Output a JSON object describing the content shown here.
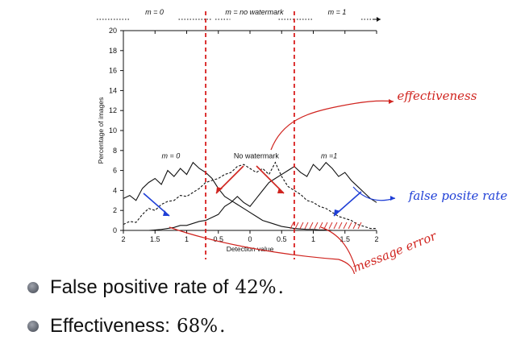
{
  "slide": {
    "bullets": [
      {
        "text": "False positive rate of",
        "value": "42%",
        "trail": "."
      },
      {
        "text": "Effectiveness:",
        "value": "68%",
        "trail": "."
      }
    ]
  },
  "annotations": {
    "effectiveness": "effectiveness",
    "false_positive_rate": "false posite rate",
    "message_error": "message error"
  },
  "colors": {
    "red_dashed": "#d81e1e",
    "red_ink": "#d0241f",
    "blue_ink": "#1f3fd6",
    "series": "#111111"
  },
  "chart_data": {
    "type": "line",
    "ylabel": "Percentage of images",
    "xlabel": "Detection value",
    "x_tick_labels": [
      "2",
      "1.5",
      "1",
      "0.5",
      "0",
      "0.5",
      "1",
      "1.5",
      "2"
    ],
    "y_ticks": [
      0,
      2,
      4,
      6,
      8,
      10,
      12,
      14,
      16,
      18,
      20
    ],
    "ylim": [
      0,
      20
    ],
    "xlim": [
      -2,
      2
    ],
    "thresholds": [
      -0.7,
      0.7
    ],
    "top_axis_labels": [
      "m_n = 0",
      "m_n = no watermark",
      "m_n = 1"
    ],
    "series_labels": [
      {
        "text": "m = 0",
        "x": -1.25,
        "y": 7.2
      },
      {
        "text": "No watermark",
        "x": 0.1,
        "y": 7.2
      },
      {
        "text": "m =1",
        "x": 1.25,
        "y": 7.2
      }
    ],
    "series": [
      {
        "name": "m = 0",
        "style": "solid",
        "x": [
          -2,
          -1.9,
          -1.8,
          -1.7,
          -1.6,
          -1.5,
          -1.4,
          -1.3,
          -1.2,
          -1.1,
          -1.0,
          -0.9,
          -0.8,
          -0.7,
          -0.6,
          -0.5,
          -0.4,
          -0.3,
          -0.2,
          -0.1,
          0,
          0.1,
          0.2,
          0.3,
          0.4,
          0.5,
          0.6,
          0.7,
          0.8,
          0.9,
          1.0,
          1.1,
          1.2,
          1.3,
          1.4,
          1.5,
          1.6,
          1.7,
          1.8,
          1.9,
          2.0
        ],
        "y": [
          3.2,
          3.5,
          3.0,
          4.2,
          4.8,
          5.2,
          4.6,
          6.0,
          5.4,
          6.2,
          5.6,
          6.8,
          6.2,
          5.8,
          5.2,
          4.2,
          3.4,
          3.0,
          2.6,
          2.2,
          1.8,
          1.4,
          1.0,
          0.8,
          0.6,
          0.4,
          0.3,
          0.2,
          0.15,
          0.1,
          0.1,
          0.05,
          0.05,
          0.0,
          0.0,
          0.0,
          0.0,
          0.0,
          0.0,
          0.0,
          0.0
        ]
      },
      {
        "name": "No watermark",
        "style": "dashed",
        "x": [
          -2,
          -1.9,
          -1.8,
          -1.7,
          -1.6,
          -1.5,
          -1.4,
          -1.3,
          -1.2,
          -1.1,
          -1.0,
          -0.9,
          -0.8,
          -0.7,
          -0.6,
          -0.5,
          -0.4,
          -0.3,
          -0.2,
          -0.1,
          0,
          0.1,
          0.2,
          0.3,
          0.4,
          0.5,
          0.6,
          0.7,
          0.8,
          0.9,
          1.0,
          1.1,
          1.2,
          1.3,
          1.4,
          1.5,
          1.6,
          1.7,
          1.8,
          1.9,
          2.0
        ],
        "y": [
          0.6,
          0.9,
          0.8,
          1.6,
          2.2,
          2.0,
          2.6,
          2.9,
          3.0,
          3.5,
          3.4,
          3.8,
          4.2,
          4.8,
          5.0,
          5.2,
          5.6,
          5.8,
          6.4,
          6.6,
          6.2,
          5.8,
          6.2,
          5.6,
          6.8,
          5.4,
          4.4,
          4.0,
          3.6,
          3.0,
          2.8,
          2.4,
          2.2,
          1.8,
          1.4,
          1.2,
          1.0,
          0.6,
          0.4,
          0.2,
          0.2
        ]
      },
      {
        "name": "m = 1",
        "style": "solid",
        "x": [
          -2,
          -1.9,
          -1.8,
          -1.7,
          -1.6,
          -1.5,
          -1.4,
          -1.3,
          -1.2,
          -1.1,
          -1.0,
          -0.9,
          -0.8,
          -0.7,
          -0.6,
          -0.5,
          -0.4,
          -0.3,
          -0.2,
          -0.1,
          0,
          0.1,
          0.2,
          0.3,
          0.4,
          0.5,
          0.6,
          0.7,
          0.8,
          0.9,
          1.0,
          1.1,
          1.2,
          1.3,
          1.4,
          1.5,
          1.6,
          1.7,
          1.8,
          1.9,
          2.0
        ],
        "y": [
          0.0,
          0.0,
          0.0,
          0.0,
          0.0,
          0.05,
          0.1,
          0.2,
          0.3,
          0.5,
          0.5,
          0.7,
          0.9,
          1.0,
          1.3,
          1.6,
          2.4,
          2.8,
          3.4,
          2.8,
          2.4,
          3.2,
          4.0,
          4.8,
          5.2,
          5.6,
          6.0,
          6.4,
          5.8,
          5.4,
          6.6,
          6.0,
          6.8,
          6.2,
          5.4,
          5.8,
          5.0,
          4.4,
          3.8,
          3.2,
          2.8
        ]
      }
    ],
    "ann_tick": {
      "red": [
        "/",
        "/",
        "/",
        "/",
        "/",
        "/",
        "/",
        "/",
        "/",
        "/",
        "/",
        "/",
        "/",
        "/",
        "/"
      ]
    },
    "grid": false,
    "legend": "inline labels"
  }
}
